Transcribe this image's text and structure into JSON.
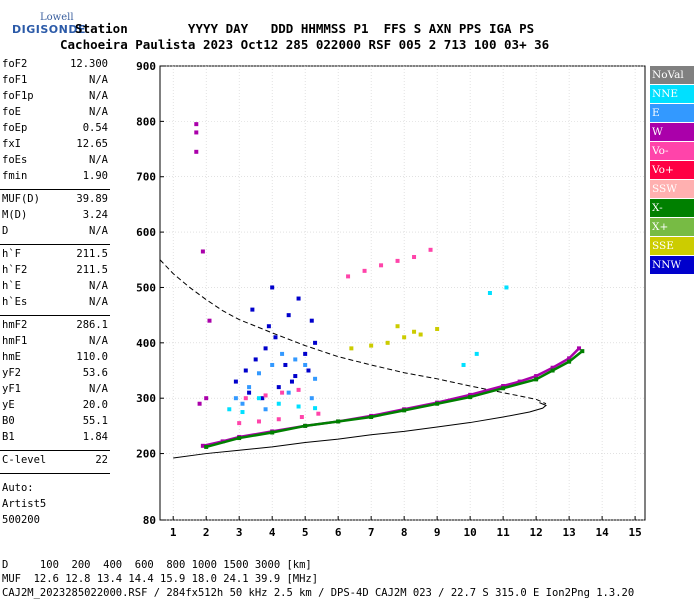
{
  "logo": {
    "line1": "Lowell",
    "line2": "DIGISONDE"
  },
  "header": {
    "line1": "  Station        YYYY DAY   DDD HHMMSS P1  FFS S AXN PPS IGA PS",
    "line2": "Cachoeira Paulista 2023 Oct12 285 022000 RSF 005 2 713 100 03+ 36"
  },
  "params": [
    {
      "group": [
        {
          "name": "foF2",
          "value": "12.300"
        },
        {
          "name": "foF1",
          "value": "N/A"
        },
        {
          "name": "foF1p",
          "value": "N/A"
        },
        {
          "name": "foE",
          "value": "N/A"
        },
        {
          "name": "foEp",
          "value": "0.54"
        },
        {
          "name": "fxI",
          "value": "12.65"
        },
        {
          "name": "foEs",
          "value": "N/A"
        },
        {
          "name": "fmin",
          "value": "1.90"
        }
      ]
    },
    {
      "group": [
        {
          "name": "MUF(D)",
          "value": "39.89"
        },
        {
          "name": "M(D)",
          "value": "3.24"
        },
        {
          "name": "D",
          "value": "N/A"
        }
      ]
    },
    {
      "group": [
        {
          "name": "h`F",
          "value": "211.5"
        },
        {
          "name": "h`F2",
          "value": "211.5"
        },
        {
          "name": "h`E",
          "value": "N/A"
        },
        {
          "name": "h`Es",
          "value": "N/A"
        }
      ]
    },
    {
      "group": [
        {
          "name": "hmF2",
          "value": "286.1"
        },
        {
          "name": "hmF1",
          "value": "N/A"
        },
        {
          "name": "hmE",
          "value": "110.0"
        },
        {
          "name": "yF2",
          "value": "53.6"
        },
        {
          "name": "yF1",
          "value": "N/A"
        },
        {
          "name": "yE",
          "value": "20.0"
        },
        {
          "name": "B0",
          "value": "55.1"
        },
        {
          "name": "B1",
          "value": "1.84"
        }
      ]
    },
    {
      "group": [
        {
          "name": "C-level",
          "value": "22"
        }
      ]
    }
  ],
  "auto": [
    "Auto:",
    "Artist5",
    "500200"
  ],
  "legend": [
    {
      "label": "NoVal",
      "color": "#808080"
    },
    {
      "label": "NNE",
      "color": "#00e0ff"
    },
    {
      "label": "E",
      "color": "#3399ff"
    },
    {
      "label": "W",
      "color": "#aa00aa"
    },
    {
      "label": "Vo-",
      "color": "#ff44aa"
    },
    {
      "label": "Vo+",
      "color": "#ff0044"
    },
    {
      "label": "SSW",
      "color": "#ffb0b0"
    },
    {
      "label": "X-",
      "color": "#008000"
    },
    {
      "label": "X+",
      "color": "#77bb44"
    },
    {
      "label": "SSE",
      "color": "#cccc00"
    },
    {
      "label": "NNW",
      "color": "#0000cc"
    }
  ],
  "footer": {
    "line1": "D     100  200  400  600  800 1000 1500 3000 [km]",
    "line2": "MUF  12.6 12.8 13.4 14.4 15.9 18.0 24.1 39.9 [MHz]",
    "line3": "CAJ2M_2023285022000.RSF / 284fx512h 50 kHz 2.5 km / DPS-4D CAJ2M 023 / 22.7 S 315.0 E Ion2Png 1.3.20"
  },
  "chart_data": {
    "type": "scatter",
    "xlim": [
      0.6,
      15.3
    ],
    "ylim": [
      80,
      900
    ],
    "x_ticks": [
      1,
      2,
      3,
      4,
      5,
      6,
      7,
      8,
      9,
      10,
      11,
      12,
      13,
      14,
      15
    ],
    "y_ticks": [
      80,
      200,
      300,
      400,
      500,
      600,
      700,
      800,
      900
    ],
    "grid": true,
    "series": [
      {
        "name": "O-trace",
        "color": "#aa00aa",
        "points": [
          [
            1.9,
            214
          ],
          [
            2.5,
            222
          ],
          [
            3,
            230
          ],
          [
            4,
            240
          ],
          [
            5,
            250
          ],
          [
            6,
            258
          ],
          [
            7,
            268
          ],
          [
            8,
            280
          ],
          [
            9,
            292
          ],
          [
            10,
            306
          ],
          [
            11,
            322
          ],
          [
            11.5,
            330
          ],
          [
            12,
            340
          ],
          [
            12.5,
            355
          ],
          [
            13,
            372
          ],
          [
            13.3,
            390
          ]
        ]
      },
      {
        "name": "X-trace",
        "color": "#008000",
        "points": [
          [
            2,
            212
          ],
          [
            3,
            228
          ],
          [
            4,
            238
          ],
          [
            5,
            250
          ],
          [
            6,
            258
          ],
          [
            7,
            266
          ],
          [
            8,
            278
          ],
          [
            9,
            290
          ],
          [
            10,
            302
          ],
          [
            11,
            318
          ],
          [
            12,
            334
          ],
          [
            12.5,
            350
          ],
          [
            13,
            366
          ],
          [
            13.4,
            385
          ]
        ]
      },
      {
        "name": "Spread-F",
        "color": "#0000cc",
        "points": [
          [
            2.9,
            330
          ],
          [
            3.2,
            350
          ],
          [
            3.5,
            370
          ],
          [
            3.8,
            390
          ],
          [
            4.1,
            410
          ],
          [
            4.4,
            360
          ],
          [
            4.7,
            340
          ],
          [
            5,
            380
          ],
          [
            5.3,
            400
          ],
          [
            3.3,
            310
          ],
          [
            3.7,
            300
          ],
          [
            4.2,
            320
          ],
          [
            4.6,
            330
          ],
          [
            5.1,
            350
          ],
          [
            3.9,
            430
          ],
          [
            4.5,
            450
          ],
          [
            4.8,
            480
          ],
          [
            5.2,
            440
          ],
          [
            3.4,
            460
          ],
          [
            4.0,
            500
          ]
        ]
      },
      {
        "name": "Spread-F-2",
        "color": "#3399ff",
        "points": [
          [
            2.9,
            300
          ],
          [
            3.3,
            320
          ],
          [
            3.6,
            345
          ],
          [
            4,
            360
          ],
          [
            4.3,
            380
          ],
          [
            4.7,
            370
          ],
          [
            5,
            360
          ],
          [
            5.3,
            335
          ],
          [
            3.1,
            290
          ],
          [
            4.5,
            310
          ],
          [
            5.2,
            300
          ],
          [
            3.8,
            280
          ]
        ]
      },
      {
        "name": "Spread-F-3",
        "color": "#00e0ff",
        "points": [
          [
            2.7,
            280
          ],
          [
            3.1,
            275
          ],
          [
            3.6,
            300
          ],
          [
            4.2,
            290
          ],
          [
            4.8,
            285
          ],
          [
            5.3,
            282
          ],
          [
            10.6,
            490
          ],
          [
            11.1,
            500
          ],
          [
            10.2,
            380
          ],
          [
            9.8,
            360
          ]
        ]
      },
      {
        "name": "Oblique",
        "color": "#ff44aa",
        "points": [
          [
            6.3,
            520
          ],
          [
            6.8,
            530
          ],
          [
            7.3,
            540
          ],
          [
            7.8,
            548
          ],
          [
            8.3,
            555
          ],
          [
            8.8,
            568
          ],
          [
            3,
            255
          ],
          [
            3.6,
            258
          ],
          [
            4.2,
            262
          ],
          [
            4.9,
            266
          ],
          [
            5.4,
            272
          ],
          [
            3.2,
            300
          ],
          [
            3.8,
            305
          ],
          [
            4.3,
            310
          ],
          [
            4.8,
            315
          ]
        ]
      },
      {
        "name": "SSE-echoes",
        "color": "#cccc00",
        "points": [
          [
            6.4,
            390
          ],
          [
            7,
            395
          ],
          [
            7.5,
            400
          ],
          [
            8,
            410
          ],
          [
            8.5,
            415
          ],
          [
            9,
            425
          ],
          [
            7.8,
            430
          ],
          [
            8.3,
            420
          ]
        ]
      },
      {
        "name": "Low-freq",
        "color": "#aa00aa",
        "points": [
          [
            1.7,
            795
          ],
          [
            1.7,
            780
          ],
          [
            1.7,
            745
          ],
          [
            1.9,
            565
          ],
          [
            2.1,
            440
          ],
          [
            1.8,
            290
          ],
          [
            2,
            300
          ]
        ]
      }
    ],
    "profile": {
      "name": "Electron density profile",
      "color": "#000000",
      "points": [
        [
          1,
          192
        ],
        [
          2,
          200
        ],
        [
          3,
          206
        ],
        [
          4,
          212
        ],
        [
          5,
          220
        ],
        [
          6,
          226
        ],
        [
          7,
          234
        ],
        [
          8,
          240
        ],
        [
          9,
          248
        ],
        [
          10,
          256
        ],
        [
          11,
          266
        ],
        [
          11.8,
          275
        ],
        [
          12.2,
          282
        ],
        [
          12.3,
          287
        ],
        [
          12.1,
          292
        ]
      ]
    },
    "dashed": {
      "name": "MUF curve",
      "color": "#000000",
      "points": [
        [
          0.6,
          550
        ],
        [
          1,
          525
        ],
        [
          1.5,
          500
        ],
        [
          2,
          478
        ],
        [
          2.5,
          458
        ],
        [
          3,
          442
        ],
        [
          4,
          418
        ],
        [
          5,
          395
        ],
        [
          6,
          375
        ],
        [
          7,
          360
        ],
        [
          8,
          346
        ],
        [
          9,
          335
        ],
        [
          10,
          322
        ],
        [
          11,
          310
        ],
        [
          12,
          298
        ],
        [
          12.3,
          290
        ]
      ]
    }
  }
}
